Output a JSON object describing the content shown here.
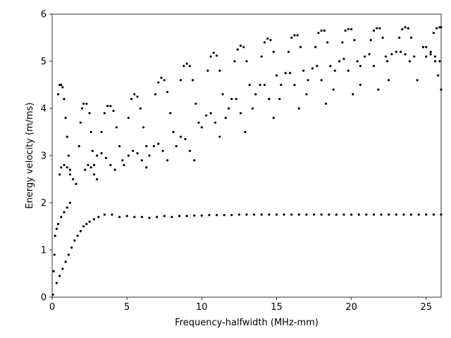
{
  "chart_data": {
    "type": "scatter",
    "title": "",
    "xlabel": "Frequency-halfwidth (MHz-mm)",
    "ylabel": "Energy velocity (m/ms)",
    "xlim": [
      0,
      26
    ],
    "ylim": [
      0,
      6
    ],
    "xticks": [
      0,
      5,
      10,
      15,
      20,
      25
    ],
    "yticks": [
      0,
      1,
      2,
      3,
      4,
      5,
      6
    ],
    "xtick_labels": [
      "0",
      "5",
      "10",
      "15",
      "20",
      "25"
    ],
    "ytick_labels": [
      "0",
      "1",
      "2",
      "3",
      "4",
      "5",
      "6"
    ],
    "grid": false,
    "legend": "none",
    "marker_color": "#000000",
    "series": [
      {
        "values_description_free": true,
        "points": [
          [
            0.05,
            0.05
          ],
          [
            0.1,
            0.55
          ],
          [
            0.15,
            0.9
          ],
          [
            0.2,
            1.3
          ],
          [
            0.3,
            1.45
          ],
          [
            0.4,
            1.55
          ],
          [
            0.6,
            1.7
          ],
          [
            0.8,
            1.8
          ],
          [
            1.0,
            1.9
          ],
          [
            1.2,
            2.0
          ],
          [
            0.3,
            0.3
          ],
          [
            0.5,
            0.45
          ],
          [
            0.7,
            0.6
          ],
          [
            0.9,
            0.75
          ],
          [
            1.1,
            0.9
          ],
          [
            1.3,
            1.05
          ],
          [
            1.5,
            1.2
          ],
          [
            1.7,
            1.3
          ],
          [
            1.9,
            1.4
          ],
          [
            2.1,
            1.5
          ],
          [
            2.3,
            1.55
          ],
          [
            2.5,
            1.6
          ],
          [
            2.8,
            1.65
          ],
          [
            3.1,
            1.7
          ],
          [
            3.5,
            1.75
          ],
          [
            4.0,
            1.75
          ],
          [
            4.5,
            1.7
          ],
          [
            5.0,
            1.72
          ],
          [
            5.5,
            1.7
          ],
          [
            6.0,
            1.7
          ],
          [
            6.5,
            1.68
          ],
          [
            7.0,
            1.7
          ],
          [
            7.5,
            1.72
          ],
          [
            8.0,
            1.7
          ],
          [
            8.5,
            1.72
          ],
          [
            9.0,
            1.72
          ],
          [
            9.5,
            1.73
          ],
          [
            10.0,
            1.73
          ],
          [
            10.5,
            1.74
          ],
          [
            11.0,
            1.74
          ],
          [
            11.5,
            1.74
          ],
          [
            12.0,
            1.74
          ],
          [
            12.5,
            1.75
          ],
          [
            13.0,
            1.75
          ],
          [
            13.5,
            1.75
          ],
          [
            14.0,
            1.75
          ],
          [
            14.5,
            1.75
          ],
          [
            15.0,
            1.75
          ],
          [
            15.5,
            1.75
          ],
          [
            16.0,
            1.75
          ],
          [
            16.5,
            1.75
          ],
          [
            17.0,
            1.75
          ],
          [
            17.5,
            1.75
          ],
          [
            18.0,
            1.75
          ],
          [
            18.5,
            1.75
          ],
          [
            19.0,
            1.75
          ],
          [
            19.5,
            1.75
          ],
          [
            20.0,
            1.75
          ],
          [
            20.5,
            1.75
          ],
          [
            21.0,
            1.75
          ],
          [
            21.5,
            1.75
          ],
          [
            22.0,
            1.75
          ],
          [
            22.5,
            1.75
          ],
          [
            23.0,
            1.75
          ],
          [
            23.5,
            1.75
          ],
          [
            24.0,
            1.75
          ],
          [
            24.5,
            1.75
          ],
          [
            25.0,
            1.75
          ],
          [
            25.5,
            1.75
          ],
          [
            26.0,
            1.75
          ],
          [
            0.4,
            4.3
          ],
          [
            0.5,
            4.5
          ],
          [
            0.6,
            4.5
          ],
          [
            0.7,
            4.45
          ],
          [
            0.8,
            4.2
          ],
          [
            0.9,
            3.8
          ],
          [
            1.0,
            3.4
          ],
          [
            1.1,
            3.0
          ],
          [
            1.2,
            2.7
          ],
          [
            0.5,
            2.6
          ],
          [
            0.6,
            2.75
          ],
          [
            0.8,
            2.8
          ],
          [
            1.0,
            2.75
          ],
          [
            1.2,
            2.6
          ],
          [
            1.4,
            2.5
          ],
          [
            1.6,
            2.4
          ],
          [
            1.8,
            3.2
          ],
          [
            1.9,
            3.7
          ],
          [
            2.0,
            4.0
          ],
          [
            2.1,
            4.1
          ],
          [
            2.3,
            4.1
          ],
          [
            2.5,
            3.9
          ],
          [
            2.6,
            3.5
          ],
          [
            2.7,
            3.1
          ],
          [
            2.8,
            2.8
          ],
          [
            2.2,
            2.7
          ],
          [
            2.4,
            2.8
          ],
          [
            2.6,
            2.75
          ],
          [
            2.8,
            2.6
          ],
          [
            3.0,
            2.5
          ],
          [
            3.3,
            3.5
          ],
          [
            3.5,
            3.9
          ],
          [
            3.7,
            4.05
          ],
          [
            3.9,
            4.05
          ],
          [
            4.1,
            3.95
          ],
          [
            4.3,
            3.6
          ],
          [
            4.5,
            3.2
          ],
          [
            4.7,
            2.9
          ],
          [
            3.0,
            3.0
          ],
          [
            3.3,
            3.05
          ],
          [
            3.6,
            2.95
          ],
          [
            3.9,
            2.8
          ],
          [
            4.2,
            2.7
          ],
          [
            5.1,
            3.8
          ],
          [
            5.3,
            4.2
          ],
          [
            5.5,
            4.3
          ],
          [
            5.7,
            4.25
          ],
          [
            5.9,
            4.0
          ],
          [
            6.1,
            3.6
          ],
          [
            6.3,
            3.2
          ],
          [
            4.8,
            2.8
          ],
          [
            5.1,
            3.0
          ],
          [
            5.4,
            3.1
          ],
          [
            5.7,
            3.05
          ],
          [
            6.0,
            2.9
          ],
          [
            6.3,
            2.75
          ],
          [
            6.9,
            4.3
          ],
          [
            7.1,
            4.55
          ],
          [
            7.3,
            4.65
          ],
          [
            7.5,
            4.6
          ],
          [
            7.7,
            4.35
          ],
          [
            7.9,
            3.9
          ],
          [
            8.1,
            3.5
          ],
          [
            6.5,
            3.0
          ],
          [
            6.8,
            3.2
          ],
          [
            7.1,
            3.25
          ],
          [
            7.4,
            3.1
          ],
          [
            7.7,
            2.9
          ],
          [
            8.6,
            4.6
          ],
          [
            8.8,
            4.9
          ],
          [
            9.0,
            4.95
          ],
          [
            9.2,
            4.9
          ],
          [
            9.4,
            4.6
          ],
          [
            9.6,
            4.1
          ],
          [
            9.8,
            3.7
          ],
          [
            8.3,
            3.2
          ],
          [
            8.6,
            3.4
          ],
          [
            8.9,
            3.35
          ],
          [
            9.2,
            3.1
          ],
          [
            9.5,
            2.9
          ],
          [
            10.4,
            4.8
          ],
          [
            10.6,
            5.1
          ],
          [
            10.8,
            5.18
          ],
          [
            11.0,
            5.12
          ],
          [
            11.2,
            4.8
          ],
          [
            11.4,
            4.3
          ],
          [
            11.6,
            3.8
          ],
          [
            10.0,
            3.6
          ],
          [
            10.3,
            3.85
          ],
          [
            10.6,
            3.9
          ],
          [
            10.9,
            3.7
          ],
          [
            11.2,
            3.4
          ],
          [
            12.2,
            5.0
          ],
          [
            12.4,
            5.25
          ],
          [
            12.6,
            5.33
          ],
          [
            12.8,
            5.3
          ],
          [
            13.0,
            5.0
          ],
          [
            13.2,
            4.5
          ],
          [
            13.4,
            4.0
          ],
          [
            11.8,
            4.0
          ],
          [
            12.0,
            4.2
          ],
          [
            12.3,
            4.2
          ],
          [
            12.6,
            3.9
          ],
          [
            12.9,
            3.5
          ],
          [
            14.0,
            5.1
          ],
          [
            14.2,
            5.4
          ],
          [
            14.4,
            5.48
          ],
          [
            14.6,
            5.45
          ],
          [
            14.8,
            5.2
          ],
          [
            15.0,
            4.7
          ],
          [
            15.2,
            4.2
          ],
          [
            13.6,
            4.3
          ],
          [
            13.9,
            4.5
          ],
          [
            14.2,
            4.5
          ],
          [
            14.5,
            4.2
          ],
          [
            14.8,
            3.8
          ],
          [
            15.8,
            5.2
          ],
          [
            16.0,
            5.5
          ],
          [
            16.2,
            5.55
          ],
          [
            16.4,
            5.55
          ],
          [
            16.6,
            5.3
          ],
          [
            16.8,
            4.8
          ],
          [
            17.0,
            4.3
          ],
          [
            15.3,
            4.5
          ],
          [
            15.6,
            4.75
          ],
          [
            15.9,
            4.75
          ],
          [
            16.2,
            4.5
          ],
          [
            16.5,
            4.0
          ],
          [
            17.6,
            5.3
          ],
          [
            17.8,
            5.6
          ],
          [
            18.0,
            5.65
          ],
          [
            18.2,
            5.65
          ],
          [
            18.4,
            5.4
          ],
          [
            18.6,
            4.9
          ],
          [
            18.8,
            4.4
          ],
          [
            17.1,
            4.6
          ],
          [
            17.4,
            4.85
          ],
          [
            17.7,
            4.9
          ],
          [
            18.0,
            4.6
          ],
          [
            18.3,
            4.1
          ],
          [
            19.4,
            5.4
          ],
          [
            19.6,
            5.65
          ],
          [
            19.8,
            5.68
          ],
          [
            20.0,
            5.68
          ],
          [
            20.2,
            5.45
          ],
          [
            20.4,
            5.0
          ],
          [
            20.6,
            4.5
          ],
          [
            18.9,
            4.8
          ],
          [
            19.2,
            5.0
          ],
          [
            19.5,
            5.05
          ],
          [
            19.8,
            4.8
          ],
          [
            20.1,
            4.3
          ],
          [
            21.3,
            5.45
          ],
          [
            21.5,
            5.65
          ],
          [
            21.7,
            5.7
          ],
          [
            21.9,
            5.7
          ],
          [
            22.1,
            5.5
          ],
          [
            22.3,
            5.1
          ],
          [
            22.5,
            4.6
          ],
          [
            20.6,
            4.9
          ],
          [
            20.9,
            5.1
          ],
          [
            21.2,
            5.15
          ],
          [
            21.5,
            4.9
          ],
          [
            21.8,
            4.4
          ],
          [
            23.2,
            5.5
          ],
          [
            23.4,
            5.68
          ],
          [
            23.6,
            5.72
          ],
          [
            23.8,
            5.7
          ],
          [
            24.0,
            5.5
          ],
          [
            24.2,
            5.1
          ],
          [
            24.4,
            4.6
          ],
          [
            22.4,
            5.0
          ],
          [
            22.7,
            5.15
          ],
          [
            23.0,
            5.2
          ],
          [
            23.3,
            5.2
          ],
          [
            23.6,
            5.15
          ],
          [
            23.9,
            5.0
          ],
          [
            24.8,
            5.3
          ],
          [
            25.0,
            5.3
          ],
          [
            25.3,
            5.2
          ],
          [
            25.6,
            5.0
          ],
          [
            25.8,
            4.7
          ],
          [
            26.0,
            4.4
          ],
          [
            25.0,
            5.1
          ],
          [
            25.3,
            5.15
          ],
          [
            25.6,
            5.1
          ],
          [
            25.9,
            5.0
          ],
          [
            25.5,
            5.6
          ],
          [
            25.7,
            5.7
          ],
          [
            25.9,
            5.72
          ],
          [
            26.0,
            5.72
          ]
        ]
      }
    ]
  }
}
